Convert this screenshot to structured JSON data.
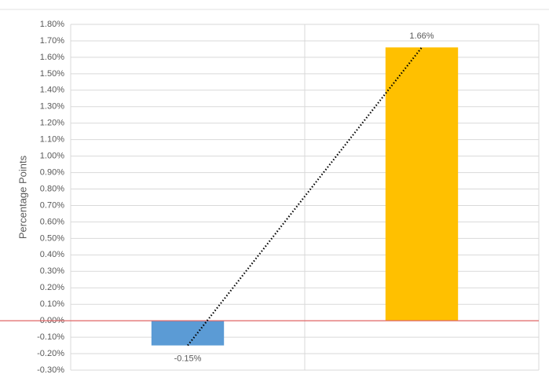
{
  "chart_data": {
    "type": "bar",
    "y_label": "Percentage Points",
    "categories": [
      null,
      null
    ],
    "values": [
      -0.15,
      1.66
    ],
    "value_labels": [
      "-0.15%",
      "1.66%"
    ],
    "colors": [
      "#5b9bd5",
      "#ffc000"
    ],
    "ylim": [
      -0.3,
      1.8
    ],
    "yticks": [
      {
        "value": -0.3,
        "label": "-0.30%"
      },
      {
        "value": -0.2,
        "label": "-0.20%"
      },
      {
        "value": -0.1,
        "label": "-0.10%"
      },
      {
        "value": 0,
        "label": "0.00%"
      },
      {
        "value": 0.1,
        "label": "0.10%"
      },
      {
        "value": 0.2,
        "label": "0.20%"
      },
      {
        "value": 0.3,
        "label": "0.30%"
      },
      {
        "value": 0.4,
        "label": "0.40%"
      },
      {
        "value": 0.5,
        "label": "0.50%"
      },
      {
        "value": 0.6,
        "label": "0.60%"
      },
      {
        "value": 0.7,
        "label": "0.70%"
      },
      {
        "value": 0.8,
        "label": "0.80%"
      },
      {
        "value": 0.9,
        "label": "0.90%"
      },
      {
        "value": 1.0,
        "label": "1.00%"
      },
      {
        "value": 1.1,
        "label": "1.10%"
      },
      {
        "value": 1.2,
        "label": "1.20%"
      },
      {
        "value": 1.3,
        "label": "1.30%"
      },
      {
        "value": 1.4,
        "label": "1.40%"
      },
      {
        "value": 1.5,
        "label": "1.50%"
      },
      {
        "value": 1.6,
        "label": "1.60%"
      },
      {
        "value": 1.7,
        "label": "1.70%"
      },
      {
        "value": 1.8,
        "label": "1.80%"
      }
    ],
    "grid": true,
    "trendline": true
  }
}
